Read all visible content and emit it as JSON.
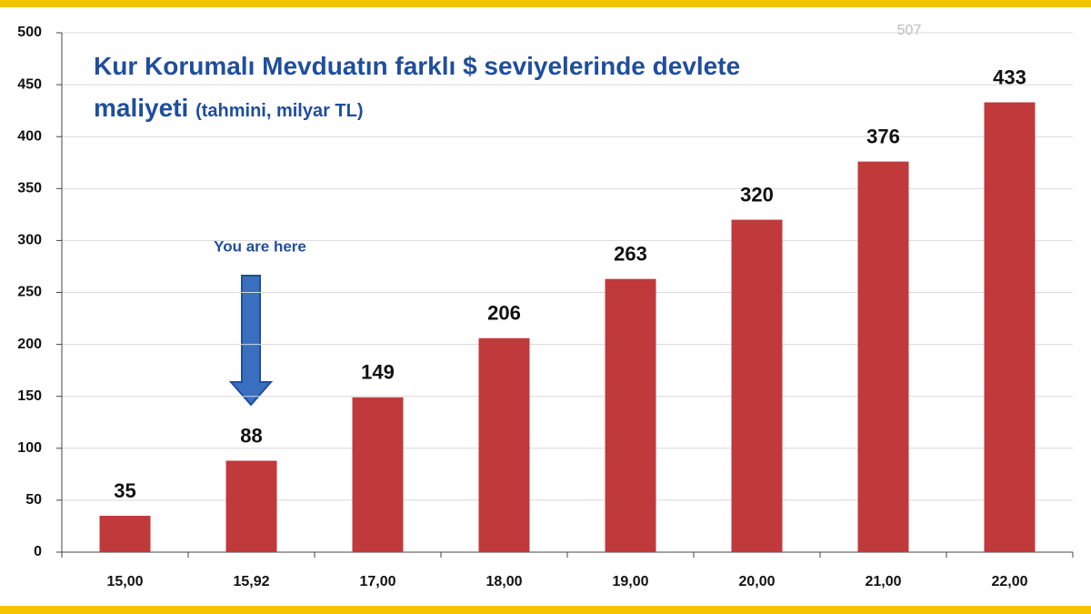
{
  "chart_data": {
    "type": "bar",
    "title": "Kur Korumalı Mevduatın farklı $ seviyelerinde devlete maliyeti",
    "subtitle": "(tahmini, milyar TL)",
    "categories": [
      "15,00",
      "15,92",
      "17,00",
      "18,00",
      "19,00",
      "20,00",
      "21,00",
      "22,00"
    ],
    "values": [
      35,
      88,
      149,
      206,
      263,
      320,
      376,
      433
    ],
    "color": "#c0393b",
    "ylim": [
      0,
      500
    ],
    "yticks": [
      0,
      50,
      100,
      150,
      200,
      250,
      300,
      350,
      400,
      450,
      500
    ],
    "grid": true,
    "annotations": [
      "You are here",
      "507"
    ]
  }
}
